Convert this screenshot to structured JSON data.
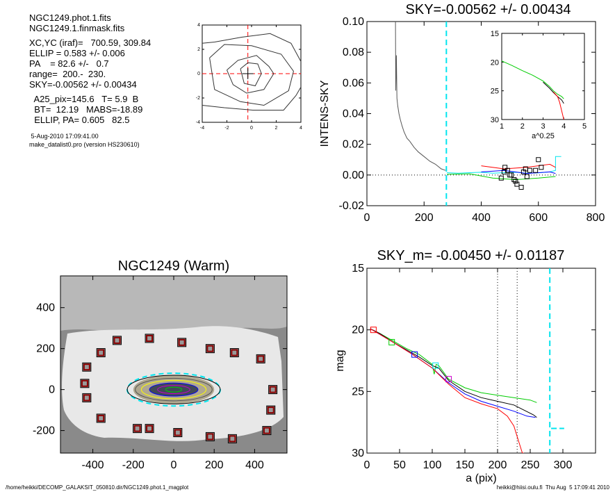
{
  "info": {
    "lines": [
      "NGC1249.phot.1.fits",
      "NGC1249.1.finmask.fits",
      "",
      "XC,YC (iraf)=   700.59, 309.84",
      "ELLIP = 0.583 +/- 0.006",
      "PA    = 82.6 +/-   0.7",
      "range=  200.-  230.",
      "SKY=-0.00562 +/- 0.00434",
      "",
      "  A25_pix=145.6   T= 5.9  B",
      "  BT=  12.19   MABS=-18.89",
      "  ELLIP, PA= 0.605   82.5"
    ],
    "date": " 5-Aug-2010 17:09:41.00",
    "program": "make_datalist0.pro (version HS230610)"
  },
  "footer": {
    "left": "/home/heikki/DECOMP_GALAKSIT_050810.dir/NGC1249.phot.1_magplot",
    "right": "heikki@hiisi.oulu.fi  Thu Aug  5 17:09:41 2010"
  },
  "colors": {
    "cyan": "#00e5ee",
    "green": "#00cc00",
    "red": "#ff0000",
    "blue": "#0000ff",
    "magenta": "#cc00cc",
    "gray": "#555555"
  },
  "chart_data": [
    {
      "id": "contour",
      "type": "line",
      "title": "",
      "xlim": [
        -4,
        4
      ],
      "ylim": [
        -4,
        4
      ],
      "xticks": [
        "-4",
        "-2",
        "0",
        "2",
        "4"
      ],
      "yticks": [
        "-4",
        "-2",
        "0",
        "2",
        "4"
      ],
      "contours": [
        [
          [
            -2.0,
            0.3
          ],
          [
            -1.1,
            1.1
          ],
          [
            0.4,
            1.5
          ],
          [
            1.4,
            0.6
          ],
          [
            1.8,
            0.0
          ],
          [
            1.0,
            -1.3
          ],
          [
            -0.4,
            -1.6
          ],
          [
            -1.5,
            -0.9
          ],
          [
            -2.0,
            0.3
          ]
        ],
        [
          [
            -3.4,
            1.3
          ],
          [
            -2.2,
            2.4
          ],
          [
            0.0,
            2.3
          ],
          [
            2.4,
            1.6
          ],
          [
            3.4,
            0.2
          ],
          [
            3.0,
            -1.4
          ],
          [
            1.0,
            -2.6
          ],
          [
            -0.9,
            -2.3
          ],
          [
            -3.0,
            -1.3
          ],
          [
            -3.4,
            1.3
          ]
        ],
        [
          [
            -4.0,
            2.5
          ],
          [
            -3.0,
            2.6
          ],
          [
            -0.8,
            3.0
          ],
          [
            1.5,
            3.3
          ],
          [
            3.2,
            2.5
          ],
          [
            4.0,
            1.0
          ]
        ],
        [
          [
            -4.0,
            -2.6
          ],
          [
            -2.2,
            -2.8
          ],
          [
            0.1,
            -3.0
          ],
          [
            2.6,
            -3.0
          ],
          [
            3.6,
            -1.8
          ],
          [
            4.0,
            -1.1
          ]
        ],
        [
          [
            -0.9,
            0.4
          ],
          [
            -0.3,
            0.9
          ],
          [
            0.5,
            0.8
          ],
          [
            0.8,
            0.0
          ],
          [
            0.3,
            -1.0
          ],
          [
            -0.6,
            -0.8
          ],
          [
            -0.9,
            0.4
          ]
        ]
      ],
      "center": [
        -0.3,
        0.0
      ]
    },
    {
      "id": "sky_profile",
      "type": "line",
      "title": "SKY=-0.00562 +/- 0.00434",
      "xlabel": "",
      "ylabel": "INTENS-SKY",
      "xlim": [
        0,
        800
      ],
      "ylim": [
        -0.02,
        0.1
      ],
      "xticks": [
        "0",
        "200",
        "400",
        "600",
        "800"
      ],
      "yticks": [
        "-0.02",
        "0.00",
        "0.02",
        "0.04",
        "0.06",
        "0.08",
        "0.10"
      ],
      "vline": 278,
      "series": [
        {
          "color": "gray",
          "x": [
            100,
            101,
            103,
            105,
            108,
            112,
            117,
            123,
            130,
            140,
            150,
            165,
            180,
            200,
            220,
            240,
            260,
            275
          ],
          "y": [
            0.1,
            0.055,
            0.078,
            0.05,
            0.045,
            0.04,
            0.036,
            0.032,
            0.028,
            0.024,
            0.022,
            0.018,
            0.015,
            0.012,
            0.009,
            0.007,
            0.004,
            0.003
          ]
        },
        {
          "color": "cyan",
          "x": [
            280,
            320,
            360,
            400,
            440,
            480,
            520,
            560,
            600,
            640,
            660,
            660,
            680
          ],
          "y": [
            0.0015,
            0.0012,
            0.0015,
            0.0018,
            0.0012,
            0.0015,
            0.0018,
            0.0012,
            0.0014,
            0.002,
            0.003,
            0.012,
            0.012
          ]
        },
        {
          "color": "green",
          "x": [
            280,
            360,
            440,
            520,
            600,
            660
          ],
          "y": [
            0.0005,
            0.0008,
            -0.002,
            -0.003,
            -0.002,
            -0.001
          ]
        },
        {
          "color": "red",
          "x": [
            400,
            480,
            560,
            640,
            660
          ],
          "y": [
            0.006,
            0.004,
            0.005,
            0.007,
            0.005
          ]
        },
        {
          "color": "blue",
          "x": [
            400,
            480,
            560,
            640,
            660
          ],
          "y": [
            0.002,
            0.003,
            0.001,
            0.002,
            0.001
          ]
        }
      ],
      "points": {
        "x": [
          483,
          492,
          480,
          470,
          505,
          515,
          525,
          540,
          548,
          555,
          560,
          570,
          590,
          600,
          610,
          500,
          520
        ],
        "y": [
          0.005,
          0.003,
          0.002,
          -0.002,
          0.0,
          -0.003,
          -0.006,
          -0.008,
          0.002,
          0.004,
          -0.001,
          0.003,
          0.003,
          0.01,
          0.005,
          0.0,
          -0.004
        ]
      },
      "inset": {
        "xlabel": "a^0.25",
        "xlim": [
          1,
          5
        ],
        "ylim": [
          30,
          15
        ],
        "xticks": [
          "1",
          "2",
          "3",
          "4",
          "5"
        ],
        "yticks": [
          "15",
          "20",
          "25",
          "30"
        ],
        "series": [
          {
            "color": "green",
            "x": [
              1.0,
              1.5,
              2.0,
              2.5,
              3.0,
              3.3,
              3.5,
              3.7,
              3.9,
              4.0
            ],
            "y": [
              19.8,
              20.6,
              21.5,
              22.3,
              23.3,
              24.2,
              25.0,
              25.6,
              26.0,
              26.4
            ]
          },
          {
            "color": "black",
            "x": [
              3.0,
              3.3,
              3.5,
              3.7,
              3.9,
              4.0
            ],
            "y": [
              23.5,
              24.5,
              25.3,
              26.0,
              26.6,
              27.2
            ]
          },
          {
            "color": "red",
            "x": [
              3.5,
              3.7,
              3.8,
              3.9,
              4.0
            ],
            "y": [
              25.2,
              26.0,
              27.0,
              28.5,
              30.0
            ]
          }
        ]
      }
    },
    {
      "id": "image",
      "type": "scatter",
      "title": "NGC1249 (Warm)",
      "xlim": [
        -560,
        560
      ],
      "ylim": [
        -310,
        555
      ],
      "xticks": [
        "-400",
        "-200",
        "0",
        "200",
        "400"
      ],
      "yticks": [
        "-200",
        "0",
        "200",
        "400"
      ],
      "boxes": {
        "x": [
          -280,
          -120,
          40,
          180,
          300,
          430,
          490,
          480,
          460,
          290,
          180,
          20,
          -120,
          -180,
          -360,
          -430,
          -440,
          -430,
          -360
        ],
        "y": [
          240,
          250,
          230,
          200,
          180,
          150,
          0,
          -100,
          -200,
          -240,
          -230,
          -210,
          -190,
          -190,
          -140,
          -40,
          30,
          110,
          180
        ]
      },
      "ellipses": [
        {
          "a": 230,
          "b": 80,
          "color": "cyan",
          "dash": true
        },
        {
          "a": 230,
          "b": 70,
          "color": "black"
        },
        {
          "a": 190,
          "b": 55,
          "color": "gray"
        },
        {
          "a": 160,
          "b": 45,
          "color": "yellow"
        },
        {
          "a": 120,
          "b": 32,
          "color": "blue"
        },
        {
          "a": 80,
          "b": 20,
          "color": "magenta"
        },
        {
          "a": 40,
          "b": 12,
          "color": "green"
        }
      ]
    },
    {
      "id": "magplot",
      "type": "line",
      "title": "SKY_m= -0.00450 +/- 0.01187",
      "xlabel": "a (pix)",
      "ylabel": "mag",
      "xlim": [
        0,
        350
      ],
      "ylim": [
        30,
        15
      ],
      "xticks": [
        "0",
        "50",
        "100",
        "150",
        "200",
        "250",
        "300"
      ],
      "yticks": [
        "15",
        "20",
        "25",
        "30"
      ],
      "vlines_dotted": [
        200,
        230
      ],
      "vline_cyan": 280,
      "series": [
        {
          "name": "",
          "color": "green",
          "x": [
            5,
            20,
            40,
            60,
            80,
            100,
            103,
            106,
            110,
            125,
            150,
            175,
            200,
            225,
            250,
            260
          ],
          "y": [
            19.9,
            20.3,
            20.9,
            21.5,
            22.0,
            22.8,
            23.6,
            22.8,
            22.9,
            24.0,
            24.7,
            25.1,
            25.3,
            25.5,
            25.7,
            25.9
          ]
        },
        {
          "name": "",
          "color": "black",
          "x": [
            5,
            20,
            40,
            60,
            80,
            100,
            110,
            125,
            150,
            175,
            200,
            225,
            240,
            255,
            260
          ],
          "y": [
            19.9,
            20.3,
            21.0,
            21.6,
            22.2,
            22.9,
            23.1,
            24.1,
            25.0,
            25.5,
            25.8,
            26.1,
            26.5,
            26.9,
            27.1
          ]
        },
        {
          "name": "",
          "color": "blue",
          "x": [
            5,
            40,
            70,
            100,
            125,
            150,
            175,
            200,
            225,
            245,
            258
          ],
          "y": [
            19.9,
            21.0,
            22.0,
            23.1,
            24.3,
            25.2,
            25.8,
            26.2,
            26.6,
            27.0,
            27.1
          ]
        },
        {
          "name": "",
          "color": "red",
          "x": [
            5,
            40,
            70,
            100,
            125,
            150,
            175,
            200,
            215,
            225,
            232,
            238,
            240
          ],
          "y": [
            19.9,
            21.0,
            22.0,
            23.1,
            24.4,
            25.5,
            26.0,
            26.4,
            27.0,
            27.8,
            29.0,
            30.0,
            30.0
          ]
        }
      ],
      "squares": {
        "x": [
          10,
          38,
          73,
          105,
          125
        ],
        "y": [
          20.0,
          21.0,
          22.0,
          22.9,
          24.0
        ],
        "colors": [
          "red",
          "green",
          "blue",
          "cyan",
          "magenta"
        ]
      },
      "sky_segment": {
        "x": [
          282,
          302
        ],
        "y": 28.0
      }
    }
  ]
}
